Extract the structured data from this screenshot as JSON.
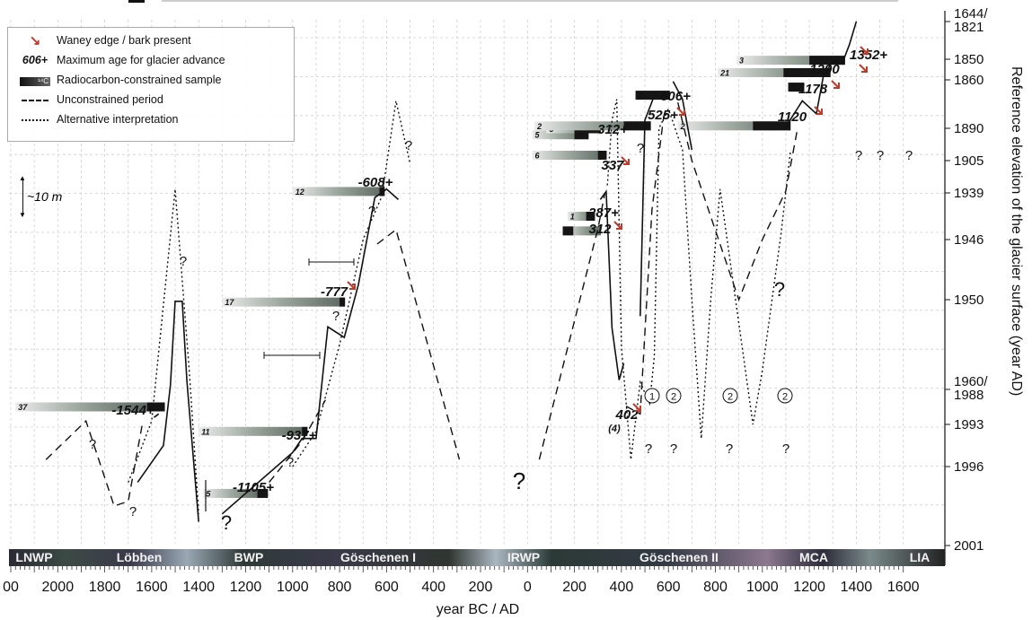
{
  "chart_data": {
    "type": "line",
    "xlabel": "year BC / AD",
    "ylabel": "Reference elevation of the glacier surface (year AD)",
    "x_ticks": [
      "00",
      "2000",
      "1800",
      "1600",
      "1400",
      "1200",
      "1000",
      "800",
      "600",
      "400",
      "200",
      "0",
      "200",
      "400",
      "600",
      "800",
      "1000",
      "1200",
      "1400",
      "1600"
    ],
    "y_ticks": [
      "1644/\n1821",
      "1850",
      "1860",
      "1890",
      "1905",
      "1939",
      "1946",
      "1950",
      "1960/\n1988",
      "1993",
      "1996",
      "2001"
    ],
    "y_ticks_lines": [
      [
        "1644/",
        "1821"
      ],
      [
        "1850"
      ],
      [
        "1860"
      ],
      [
        "1890"
      ],
      [
        "1905"
      ],
      [
        "1939"
      ],
      [
        "1946"
      ],
      [
        "1950"
      ],
      [
        "1960/",
        "1988"
      ],
      [
        "1993"
      ],
      [
        "1996"
      ],
      [
        "2001"
      ]
    ],
    "periods": [
      "LNWP",
      "Löbben",
      "BWP",
      "Göschenen I",
      "IRWP",
      "Göschenen II",
      "MCA",
      "LIA"
    ],
    "legend": {
      "waney": "Waney edge / bark present",
      "maxage_symbol": "606+",
      "maxage": "Maximum age for glacier advance",
      "c14_symbol": "¹⁴C",
      "c14": "Radiocarbon-constrained sample",
      "dash": "Unconstrained period",
      "dot": "Alternative interpretation"
    },
    "scale_label": "~10 m",
    "annotations": [
      "-1544+",
      "-1105+",
      "-937+",
      "-777",
      "-608+",
      "337",
      "287+",
      "312",
      "312+",
      "525+",
      "606+",
      "1120",
      "1178",
      "1290",
      "1352+",
      "402",
      "(4)"
    ],
    "sample_numbers": [
      "37",
      "5",
      "11",
      "17",
      "12",
      "2",
      "1",
      "5",
      "6",
      "6",
      "1",
      "2",
      "21",
      "3",
      "2",
      "1"
    ],
    "question_marks": "?",
    "circled": [
      "1",
      "2"
    ],
    "series": [
      {
        "name": "Unconstrained period",
        "style": "dashed",
        "segments": [
          [
            [
              -2050,
              1995.5
            ],
            [
              -1880,
              1992.5
            ],
            [
              -1760,
              1998.5
            ],
            [
              -1700,
              1998.2
            ],
            [
              -1640,
              1993
            ]
          ],
          [
            [
              -1100,
              1997
            ],
            [
              -960,
              1994.2
            ],
            [
              -860,
              1989.5
            ]
          ],
          [
            [
              -640,
              1946.3
            ],
            [
              -560,
              1944.5
            ],
            [
              -290,
              1995.5
            ]
          ],
          [
            [
              50,
              1995.5
            ],
            [
              300,
              1944.3
            ],
            [
              330,
              1938.6
            ]
          ],
          [
            [
              420,
              1990.4
            ],
            [
              480,
              1991.5
            ],
            [
              530,
              1941.5
            ],
            [
              580,
              1882.4
            ],
            [
              600,
              1881
            ]
          ],
          [
            [
              640,
              1874
            ],
            [
              700,
              1905
            ],
            [
              900,
              1950
            ],
            [
              1000,
              1946
            ],
            [
              1100,
              1937
            ],
            [
              1150,
              1890
            ]
          ]
        ]
      },
      {
        "name": "Reconstruction",
        "style": "solid",
        "segments": [
          [
            [
              -1660,
              1997
            ],
            [
              -1550,
              1994.5
            ],
            [
              -1520,
              1986
            ],
            [
              -1500,
              1950.7
            ],
            [
              -1470,
              1950.7
            ],
            [
              -1450,
              1984.5
            ],
            [
              -1400,
              1999.5
            ]
          ],
          [
            [
              -1590,
              1992
            ],
            [
              -1570,
              1991.5
            ]
          ],
          [
            [
              -1300,
              1999
            ],
            [
              -1000,
              1995
            ],
            [
              -960,
              1994
            ],
            [
              -900,
              1994
            ],
            [
              -850,
              1961.5
            ],
            [
              -780,
              1966
            ],
            [
              -720,
              1949
            ],
            [
              -650,
              1939.7
            ],
            [
              -600,
              1935
            ],
            [
              -550,
              1940
            ]
          ],
          [
            [
              310,
              1940
            ],
            [
              335,
              1937.6
            ],
            [
              360,
              1962
            ],
            [
              390,
              1984
            ],
            [
              410,
              1977
            ]
          ],
          [
            [
              480,
              1957
            ],
            [
              500,
              1885
            ],
            [
              540,
              1869.7
            ]
          ],
          [
            [
              620,
              1861
            ],
            [
              660,
              1872
            ],
            [
              700,
              1900
            ]
          ],
          [
            [
              1100,
              1889
            ],
            [
              1170,
              1873
            ],
            [
              1230,
              1881
            ],
            [
              1260,
              1858
            ],
            [
              1300,
              1851
            ],
            [
              1340,
              1852
            ],
            [
              1370,
              1839
            ],
            [
              1400,
              1821
            ]
          ]
        ]
      },
      {
        "name": "Alternative interpretation",
        "style": "dotted",
        "segments": [
          [
            [
              -1700,
              1997
            ],
            [
              -1600,
              1992.5
            ],
            [
              -1500,
              1935
            ],
            [
              -1440,
              1980
            ],
            [
              -1400,
              1999
            ]
          ],
          [
            [
              -1000,
              1996
            ],
            [
              -900,
              1993.5
            ],
            [
              -800,
              1969
            ],
            [
              -700,
              1946
            ],
            [
              -620,
              1939.5
            ],
            [
              -560,
              1873
            ],
            [
              -500,
              1908
            ]
          ],
          [
            [
              340,
              1931
            ],
            [
              360,
              1885
            ],
            [
              380,
              1872
            ],
            [
              400,
              1970
            ],
            [
              440,
              1995.5
            ],
            [
              480,
              1985
            ],
            [
              520,
              1990
            ],
            [
              540,
              1974
            ],
            [
              560,
              1890
            ],
            [
              600,
              1878
            ],
            [
              660,
              1900
            ],
            [
              700,
              1950
            ],
            [
              740,
              1994
            ],
            [
              780,
              1950
            ],
            [
              820,
              1935
            ],
            [
              900,
              1960
            ],
            [
              960,
              1993
            ],
            [
              1000,
              1980
            ],
            [
              1080,
              1945
            ],
            [
              1120,
              1900
            ]
          ]
        ]
      }
    ],
    "samples": [
      {
        "label": "37",
        "x_start": -2180,
        "x_end": -1620,
        "elev": 1990.5,
        "dark_from": -1620,
        "dark_to": -1544
      },
      {
        "label": "5",
        "x_start": -1380,
        "x_end": -1130,
        "elev": 1997.7,
        "dark_from": -1150,
        "dark_to": -1105
      },
      {
        "label": "11",
        "x_start": -1400,
        "x_end": -937,
        "elev": 1993.5,
        "dark_from": -960,
        "dark_to": -937
      },
      {
        "label": "17",
        "x_start": -1300,
        "x_end": -777,
        "elev": 1951,
        "dark_from": -800,
        "dark_to": -777
      },
      {
        "label": "12",
        "x_start": -1000,
        "x_end": -608,
        "elev": 1937.5,
        "dark_from": -630,
        "dark_to": -608
      },
      {
        "label": "1",
        "x_start": 150,
        "x_end": 312,
        "elev": 1944.7,
        "dark_from": 150,
        "dark_to": 195
      },
      {
        "label": "1",
        "x_start": 170,
        "x_end": 287,
        "elev": 1942.5,
        "dark_from": 250,
        "dark_to": 287
      },
      {
        "label": "6",
        "x_start": 20,
        "x_end": 337,
        "elev": 1902.5,
        "dark_from": 300,
        "dark_to": 337
      },
      {
        "label": "5",
        "x_start": 20,
        "x_end": 260,
        "elev": 1893,
        "dark_from": 200,
        "dark_to": 260
      },
      {
        "label": "6",
        "x_start": 80,
        "x_end": 312,
        "elev": 1890.2,
        "dark_from": 200,
        "dark_to": 312
      },
      {
        "label": "2",
        "x_start": 30,
        "x_end": 525,
        "elev": 1888.5,
        "dark_from": 410,
        "dark_to": 525
      },
      {
        "label": "2",
        "x_start": 460,
        "x_end": 606,
        "elev": 1869.5,
        "dark_from": 460,
        "dark_to": 606
      },
      {
        "label": "2",
        "x_start": 640,
        "x_end": 1120,
        "elev": 1888.5,
        "dark_from": 960,
        "dark_to": 1120
      },
      {
        "label": "1",
        "x_start": 1110,
        "x_end": 1178,
        "elev": 1864.5,
        "dark_from": 1110,
        "dark_to": 1178
      },
      {
        "label": "21",
        "x_start": 810,
        "x_end": 1290,
        "elev": 1856.5,
        "dark_from": 1090,
        "dark_to": 1290
      },
      {
        "label": "3",
        "x_start": 890,
        "x_end": 1352,
        "elev": 1850.5,
        "dark_from": 1200,
        "dark_to": 1352
      }
    ]
  }
}
